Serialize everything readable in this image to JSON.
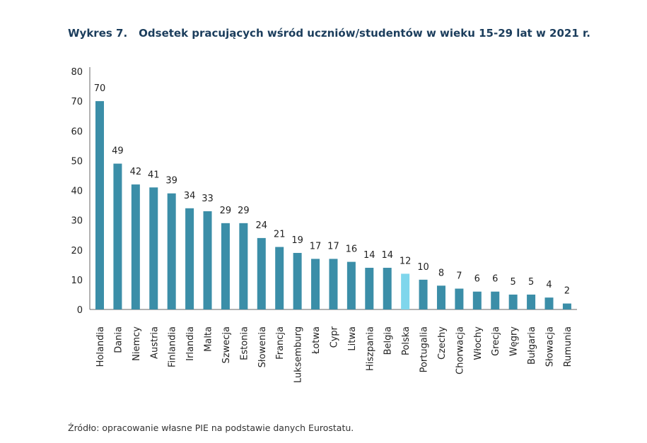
{
  "chart_data": {
    "type": "bar",
    "title_number": "Wykres 7.",
    "title": "Odsetek pracujących wśród uczniów/studentów w wieku 15-29 lat w 2021 r.",
    "source": "Źródło: opracowanie własne PIE na podstawie danych Eurostatu.",
    "xlabel": "",
    "ylabel": "",
    "ylim": [
      0,
      80
    ],
    "yticks": [
      0,
      10,
      20,
      30,
      40,
      50,
      60,
      70,
      80
    ],
    "grid": false,
    "categories": [
      "Holandia",
      "Dania",
      "Niemcy",
      "Austria",
      "Finlandia",
      "Irlandia",
      "Malta",
      "Szwecja",
      "Estonia",
      "Słowenia",
      "Francja",
      "Luksemburg",
      "Łotwa",
      "Cypr",
      "Litwa",
      "Hiszpania",
      "Belgia",
      "Polska",
      "Portugalia",
      "Czechy",
      "Chorwacja",
      "Włochy",
      "Grecja",
      "Węgry",
      "Bułgaria",
      "Słowacja",
      "Rumunia"
    ],
    "values": [
      70,
      49,
      42,
      41,
      39,
      34,
      33,
      29,
      29,
      24,
      21,
      19,
      17,
      17,
      16,
      14,
      14,
      12,
      10,
      8,
      7,
      6,
      6,
      5,
      5,
      4,
      2
    ],
    "highlight_category": "Polska",
    "colors": {
      "bar": "#3b8ea8",
      "highlight": "#7fd6ec",
      "title": "#1b3d5c"
    }
  }
}
